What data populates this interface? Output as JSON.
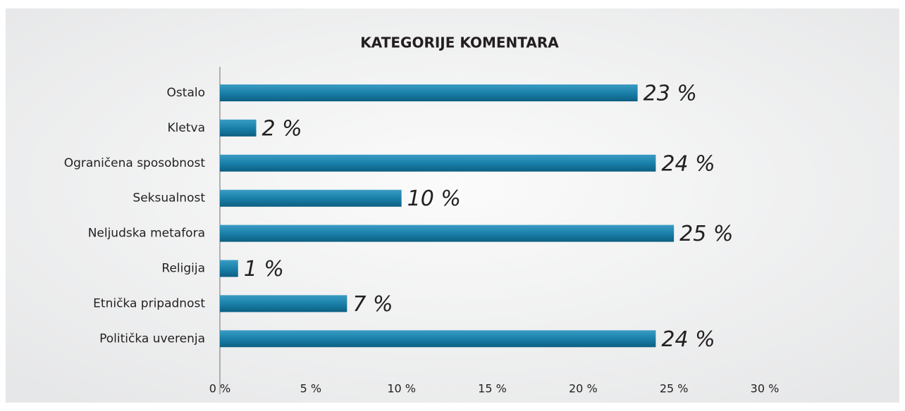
{
  "chart_data": {
    "type": "bar",
    "orientation": "horizontal",
    "title": "KATEGORIJE KOMENTARA",
    "categories": [
      "Ostalo",
      "Kletva",
      "Ograničena sposobnost",
      "Seksualnost",
      "Neljudska metafora",
      "Religija",
      "Etnička pripadnost",
      "Politička uverenja"
    ],
    "values": [
      23,
      2,
      24,
      10,
      25,
      1,
      7,
      24
    ],
    "value_labels": [
      "23 %",
      "2 %",
      "24 %",
      "10 %",
      "25 %",
      "1 %",
      "7 %",
      "24 %"
    ],
    "color": "#1a80a9",
    "xlim": [
      0,
      30
    ],
    "xticks": [
      {
        "value": 0,
        "label": "0 %"
      },
      {
        "value": 5,
        "label": "5 %"
      },
      {
        "value": 10,
        "label": "10 %"
      },
      {
        "value": 15,
        "label": "15 %"
      },
      {
        "value": 20,
        "label": "20 %"
      },
      {
        "value": 25,
        "label": "25 %"
      },
      {
        "value": 30,
        "label": "30 %"
      }
    ],
    "grid": false
  }
}
